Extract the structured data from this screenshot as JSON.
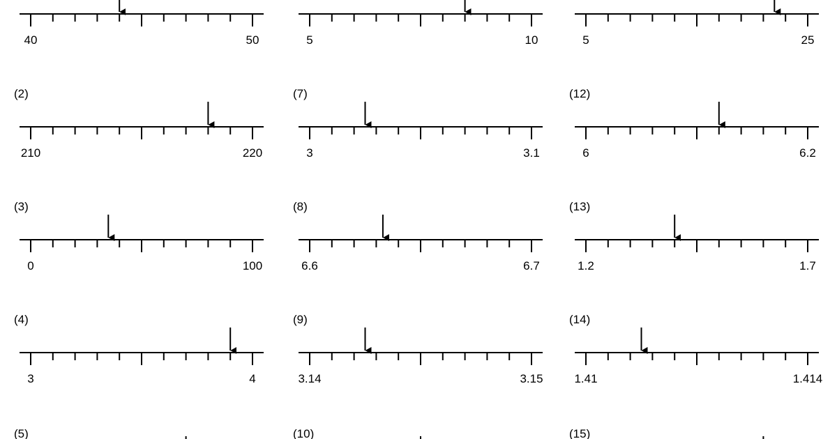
{
  "worksheet": {
    "problems": [
      {
        "number": "",
        "start_label": "40",
        "end_label": "50",
        "start": 40,
        "end": 50,
        "arrow_value": 44,
        "shows_number": false,
        "shows_line": true
      },
      {
        "number": "(2)",
        "start_label": "210",
        "end_label": "220",
        "start": 210,
        "end": 220,
        "arrow_value": 218,
        "shows_number": true,
        "shows_line": true
      },
      {
        "number": "(3)",
        "start_label": "0",
        "end_label": "100",
        "start": 0,
        "end": 100,
        "arrow_value": 35,
        "shows_number": true,
        "shows_line": true
      },
      {
        "number": "(4)",
        "start_label": "3",
        "end_label": "4",
        "start": 3,
        "end": 4,
        "arrow_value": 3.9,
        "shows_number": true,
        "shows_line": true
      },
      {
        "number": "(5)",
        "start_label": "",
        "end_label": "",
        "start": 0,
        "end": 10,
        "arrow_value": 7,
        "shows_number": true,
        "shows_line": false
      },
      {
        "number": "",
        "start_label": "5",
        "end_label": "10",
        "start": 5,
        "end": 10,
        "arrow_value": 8.5,
        "shows_number": false,
        "shows_line": true
      },
      {
        "number": "(7)",
        "start_label": "3",
        "end_label": "3.1",
        "start": 3,
        "end": 3.1,
        "arrow_value": 3.025,
        "shows_number": true,
        "shows_line": true
      },
      {
        "number": "(8)",
        "start_label": "6.6",
        "end_label": "6.7",
        "start": 6.6,
        "end": 6.7,
        "arrow_value": 6.633,
        "shows_number": true,
        "shows_line": true
      },
      {
        "number": "(9)",
        "start_label": "3.14",
        "end_label": "3.15",
        "start": 3.14,
        "end": 3.15,
        "arrow_value": 3.1425,
        "shows_number": true,
        "shows_line": true
      },
      {
        "number": "(10)",
        "start_label": "",
        "end_label": "",
        "start": 0,
        "end": 10,
        "arrow_value": 5,
        "shows_number": true,
        "shows_line": false
      },
      {
        "number": "",
        "start_label": "5",
        "end_label": "25",
        "start": 5,
        "end": 25,
        "arrow_value": 22,
        "shows_number": false,
        "shows_line": true
      },
      {
        "number": "(12)",
        "start_label": "6",
        "end_label": "6.2",
        "start": 6,
        "end": 6.2,
        "arrow_value": 6.12,
        "shows_number": true,
        "shows_line": true
      },
      {
        "number": "(13)",
        "start_label": "1.2",
        "end_label": "1.7",
        "start": 1.2,
        "end": 1.7,
        "arrow_value": 1.4,
        "shows_number": true,
        "shows_line": true
      },
      {
        "number": "(14)",
        "start_label": "1.41",
        "end_label": "1.414",
        "start": 1.41,
        "end": 1.414,
        "arrow_value": 1.411,
        "shows_number": true,
        "shows_line": true
      },
      {
        "number": "(15)",
        "start_label": "",
        "end_label": "",
        "start": 0,
        "end": 10,
        "arrow_value": 8,
        "shows_number": true,
        "shows_line": false
      }
    ]
  }
}
